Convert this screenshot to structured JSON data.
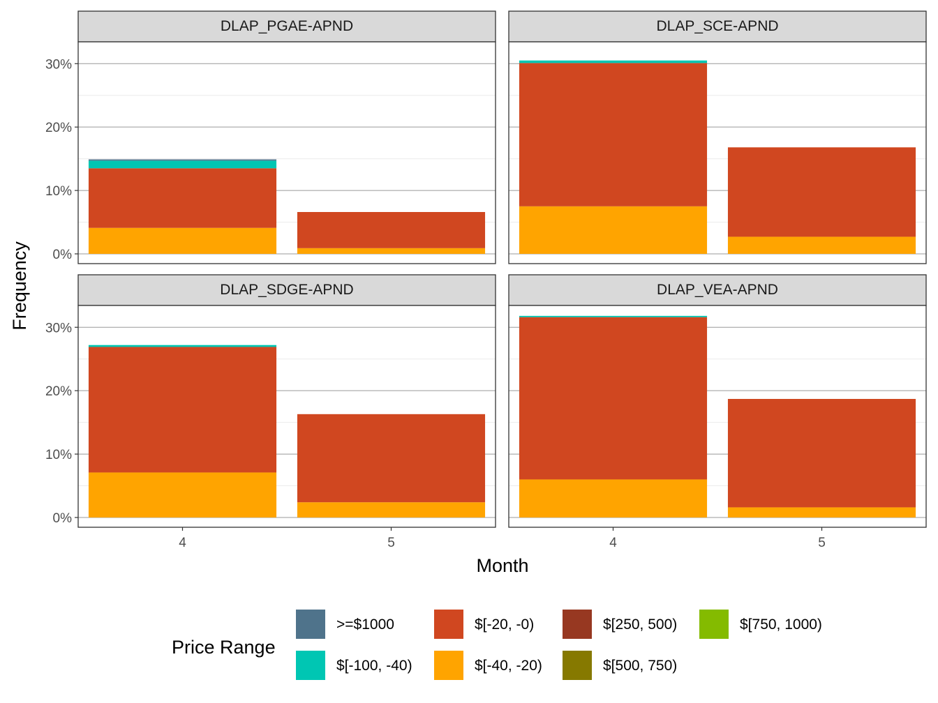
{
  "chart_data": {
    "type": "bar",
    "stacked": true,
    "facet_layout": "2x2",
    "xlabel": "Month",
    "ylabel": "Frequency",
    "categories": [
      "4",
      "5"
    ],
    "ylim": [
      0,
      0.33
    ],
    "y_ticks": [
      0,
      0.1,
      0.2,
      0.3
    ],
    "y_tick_labels": [
      "0%",
      "10%",
      "20%",
      "30%"
    ],
    "grid": true,
    "legend": {
      "title": "Price Range",
      "position": "bottom",
      "entries": [
        {
          "name": ">=$1000",
          "color": "#4f738b"
        },
        {
          "name": "$[-100, -40)",
          "color": "#00c6b3"
        },
        {
          "name": "$[-20, -0)",
          "color": "#d04720"
        },
        {
          "name": "$[-40, -20)",
          "color": "#ffa400"
        },
        {
          "name": "$[250, 500)",
          "color": "#973821"
        },
        {
          "name": "$[500, 750)",
          "color": "#867900"
        },
        {
          "name": "$[750, 1000)",
          "color": "#84bb00"
        }
      ]
    },
    "stack_order": [
      "$[-40, -20)",
      "$[-20, -0)",
      "$[-100, -40)",
      ">=$1000"
    ],
    "panels": [
      {
        "title": "DLAP_PGAE-APND",
        "series": [
          {
            "name": "$[-40, -20)",
            "values": [
              0.041,
              0.009
            ]
          },
          {
            "name": "$[-20, -0)",
            "values": [
              0.094,
              0.057
            ]
          },
          {
            "name": "$[-100, -40)",
            "values": [
              0.012,
              0.0
            ]
          },
          {
            "name": ">=$1000",
            "values": [
              0.002,
              0.0
            ]
          }
        ]
      },
      {
        "title": "DLAP_SCE-APND",
        "series": [
          {
            "name": "$[-40, -20)",
            "values": [
              0.075,
              0.027
            ]
          },
          {
            "name": "$[-20, -0)",
            "values": [
              0.226,
              0.141
            ]
          },
          {
            "name": "$[-100, -40)",
            "values": [
              0.004,
              0.0
            ]
          },
          {
            "name": ">=$1000",
            "values": [
              0.0,
              0.0
            ]
          }
        ]
      },
      {
        "title": "DLAP_SDGE-APND",
        "series": [
          {
            "name": "$[-40, -20)",
            "values": [
              0.071,
              0.024
            ]
          },
          {
            "name": "$[-20, -0)",
            "values": [
              0.198,
              0.139
            ]
          },
          {
            "name": "$[-100, -40)",
            "values": [
              0.003,
              0.0
            ]
          },
          {
            "name": ">=$1000",
            "values": [
              0.0,
              0.0
            ]
          }
        ]
      },
      {
        "title": "DLAP_VEA-APND",
        "series": [
          {
            "name": "$[-40, -20)",
            "values": [
              0.06,
              0.016
            ]
          },
          {
            "name": "$[-20, -0)",
            "values": [
              0.256,
              0.171
            ]
          },
          {
            "name": "$[-100, -40)",
            "values": [
              0.002,
              0.0
            ]
          },
          {
            "name": ">=$1000",
            "values": [
              0.0,
              0.0
            ]
          }
        ]
      }
    ]
  }
}
